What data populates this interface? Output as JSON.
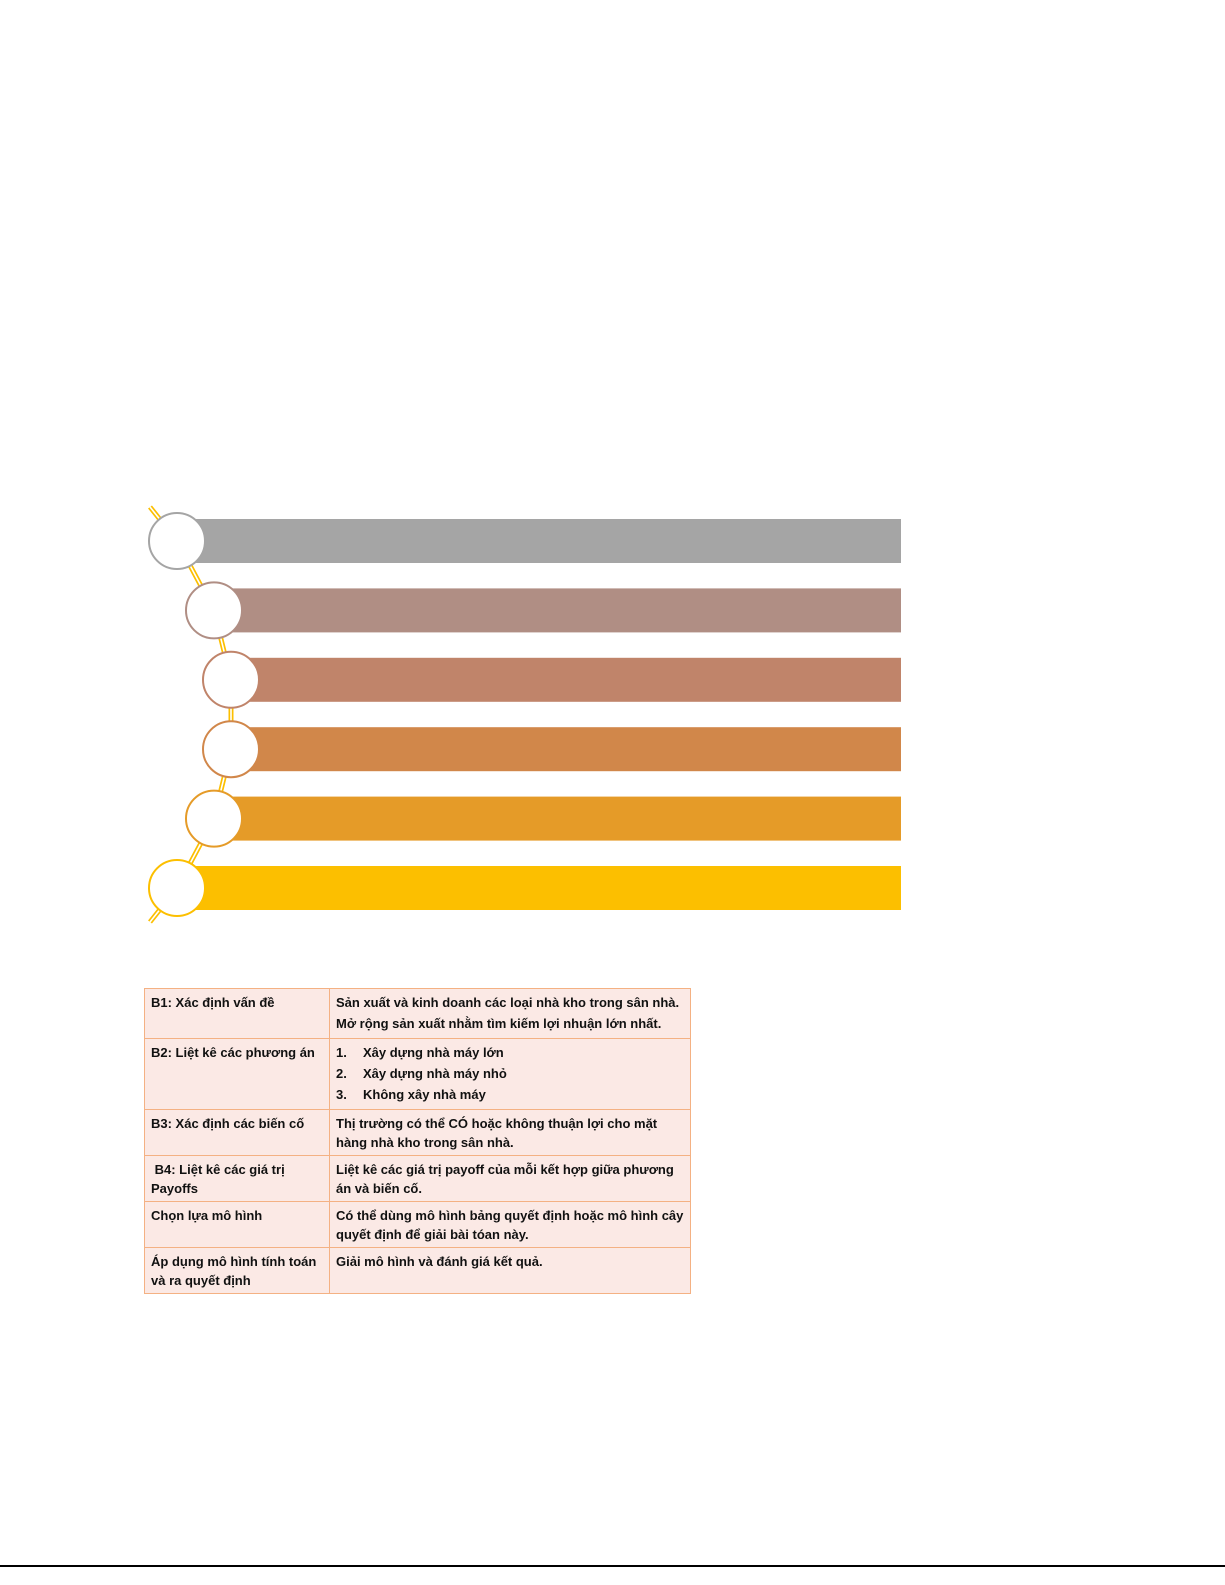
{
  "diagram": {
    "steps": [
      {
        "color": "#a5a5a5"
      },
      {
        "color": "#b08e84"
      },
      {
        "color": "#c0846a"
      },
      {
        "color": "#d1874a"
      },
      {
        "color": "#e59b28"
      },
      {
        "color": "#fcbf00"
      }
    ],
    "connector_color": "#fcbf00"
  },
  "table": {
    "rows": [
      {
        "step": "B1: Xác định vấn đề",
        "content": [
          "Sản xuất và kinh doanh các loại nhà kho trong sân nhà.",
          "Mở rộng sản xuất nhằm tìm kiếm lợi nhuận lớn nhất."
        ]
      },
      {
        "step": "B2: Liệt kê các phương án",
        "list": [
          {
            "n": "1.",
            "t": "Xây dựng nhà máy lớn"
          },
          {
            "n": "2.",
            "t": "Xây dựng nhà máy nhỏ"
          },
          {
            "n": "3.",
            "t": "Không xây nhà máy"
          }
        ]
      },
      {
        "step": "B3: Xác định các biến cố",
        "content": [
          "Thị trường có thể CÓ hoặc không thuận lợi cho mặt hàng nhà kho trong sân nhà."
        ]
      },
      {
        "step": " B4: Liệt kê các giá trị Payoffs",
        "content": [
          "Liệt kê các giá trị payoff của mỗi kết hợp giữa phương án và biến cố."
        ]
      },
      {
        "step": "Chọn lựa mô hình",
        "content": [
          "Có thể dùng mô hình bảng quyết định hoặc mô hình cây quyết định để giải bài tóan này."
        ]
      },
      {
        "step": "Áp dụng mô hình tính toán và ra quyết định",
        "content": [
          "Giải mô hình và đánh giá kết quả."
        ]
      }
    ]
  }
}
